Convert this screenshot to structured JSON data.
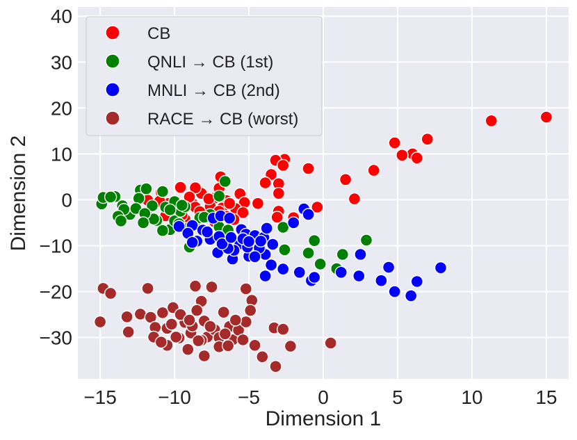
{
  "chart_data": {
    "type": "scatter",
    "xlabel": "Dimension 1",
    "ylabel": "Dimension 2",
    "xlim": [
      -16.5,
      16.5
    ],
    "ylim": [
      -39,
      42
    ],
    "xticks": [
      -15,
      -10,
      -5,
      0,
      5,
      10,
      15
    ],
    "yticks": [
      -30,
      -20,
      -10,
      0,
      10,
      20,
      30,
      40
    ],
    "grid": true,
    "legend_position": "top-left",
    "series": [
      {
        "name": "CB",
        "color": "#ff0000",
        "points": [
          [
            15.0,
            18.0
          ],
          [
            11.3,
            17.2
          ],
          [
            7.0,
            13.2
          ],
          [
            4.8,
            12.4
          ],
          [
            6.0,
            10.0
          ],
          [
            5.3,
            9.7
          ],
          [
            6.3,
            9.1
          ],
          [
            3.4,
            6.4
          ],
          [
            2.1,
            0.2
          ],
          [
            1.5,
            4.4
          ],
          [
            -1.0,
            6.8
          ],
          [
            -2.6,
            8.8
          ],
          [
            -3.2,
            8.6
          ],
          [
            -2.7,
            7.5
          ],
          [
            -3.5,
            5.5
          ],
          [
            -3.0,
            3.5
          ],
          [
            -3.9,
            3.7
          ],
          [
            -3.0,
            1.4
          ],
          [
            -4.4,
            -0.8
          ],
          [
            -3.0,
            -2.5
          ],
          [
            -2.0,
            -3.9
          ],
          [
            -0.4,
            -1.6
          ],
          [
            -3.1,
            -3.8
          ],
          [
            -6.9,
            5.0
          ],
          [
            -7.0,
            2.5
          ],
          [
            -5.6,
            1.3
          ],
          [
            -5.3,
            -0.6
          ],
          [
            -5.9,
            -1.9
          ],
          [
            -5.4,
            -2.8
          ],
          [
            -6.0,
            -4.3
          ],
          [
            -6.5,
            -0.2
          ],
          [
            -7.3,
            0.4
          ],
          [
            -8.2,
            1.4
          ],
          [
            -8.6,
            2.6
          ],
          [
            -9.6,
            2.7
          ],
          [
            -10.9,
            1.6
          ],
          [
            -11.8,
            -0.1
          ],
          [
            -10.4,
            -0.8
          ],
          [
            -9.8,
            -2.0
          ],
          [
            -10.6,
            -3.5
          ],
          [
            -8.1,
            -3.4
          ],
          [
            -7.3,
            -4.8
          ],
          [
            -6.8,
            -1.8
          ],
          [
            -8.8,
            -0.8
          ],
          [
            -9.3,
            -4.2
          ],
          [
            -11.0,
            -0.3
          ],
          [
            -8.6,
            -1.6
          ],
          [
            -9.0,
            0.6
          ],
          [
            -7.6,
            -1.4
          ],
          [
            -6.3,
            -0.8
          ],
          [
            -7.0,
            -2.5
          ],
          [
            -6.5,
            -3.6
          ],
          [
            -10.0,
            -0.9
          ],
          [
            -9.5,
            -3.3
          ],
          [
            -8.3,
            -2.6
          ],
          [
            -7.7,
            0.2
          ]
        ]
      },
      {
        "name": "QNLI → CB (1st)",
        "color": "#008000",
        "points": [
          [
            -14.9,
            -0.9
          ],
          [
            -14.8,
            0.5
          ],
          [
            -14.0,
            0.7
          ],
          [
            -13.5,
            -1.3
          ],
          [
            -13.0,
            -3.2
          ],
          [
            -12.3,
            2.1
          ],
          [
            -11.9,
            2.4
          ],
          [
            -12.4,
            0.3
          ],
          [
            -11.5,
            -1.3
          ],
          [
            -10.8,
            1.8
          ],
          [
            -10.6,
            -1.6
          ],
          [
            -11.2,
            -4.5
          ],
          [
            -10.3,
            -6.5
          ],
          [
            -10.0,
            -4.6
          ],
          [
            -9.6,
            -2.5
          ],
          [
            -9.2,
            -6.2
          ],
          [
            -8.6,
            -5.4
          ],
          [
            -7.6,
            -3.2
          ],
          [
            -7.0,
            0.8
          ],
          [
            -6.6,
            4.0
          ],
          [
            -7.0,
            -5.9
          ],
          [
            -6.4,
            -6.6
          ],
          [
            -11.8,
            -3.6
          ],
          [
            -12.6,
            -1.9
          ],
          [
            -13.4,
            -2.1
          ],
          [
            -14.3,
            0.6
          ],
          [
            -10.0,
            -0.4
          ],
          [
            -11.4,
            -4.2
          ],
          [
            -12.0,
            -3.0
          ],
          [
            -9.3,
            -1.5
          ],
          [
            -8.3,
            -3.9
          ],
          [
            -13.8,
            -3.6
          ],
          [
            -13.6,
            -4.6
          ],
          [
            -12.1,
            -5.0
          ],
          [
            -10.8,
            -6.7
          ],
          [
            -9.7,
            -5.2
          ],
          [
            -2.7,
            -6.0
          ],
          [
            -2.6,
            -10.9
          ],
          [
            -0.6,
            -8.9
          ],
          [
            -0.2,
            -14.0
          ],
          [
            -1.0,
            -11.6
          ],
          [
            0.9,
            -15.0
          ],
          [
            1.3,
            -11.9
          ],
          [
            2.9,
            -8.8
          ],
          [
            -9.5,
            -1.2
          ],
          [
            -10.3,
            -2.2
          ],
          [
            -8.0,
            -3.8
          ],
          [
            -9.0,
            -10.3
          ]
        ]
      },
      {
        "name": "MNLI → CB (2nd)",
        "color": "#0000ff",
        "points": [
          [
            -9.7,
            -5.8
          ],
          [
            -8.8,
            -5.6
          ],
          [
            -8.1,
            -6.6
          ],
          [
            -7.4,
            -4.0
          ],
          [
            -6.9,
            -3.5
          ],
          [
            -6.3,
            -4.0
          ],
          [
            -5.5,
            -6.5
          ],
          [
            -5.2,
            -7.5
          ],
          [
            -4.6,
            -7.8
          ],
          [
            -4.0,
            -8.2
          ],
          [
            -3.8,
            -6.2
          ],
          [
            -3.4,
            -9.7
          ],
          [
            -3.9,
            -11.9
          ],
          [
            -5.0,
            -12.3
          ],
          [
            -6.1,
            -12.9
          ],
          [
            -6.7,
            -9.3
          ],
          [
            -7.6,
            -8.6
          ],
          [
            -8.5,
            -9.0
          ],
          [
            -9.1,
            -7.3
          ],
          [
            -8.8,
            -9.3
          ],
          [
            -7.0,
            -8.0
          ],
          [
            -5.6,
            -9.6
          ],
          [
            -4.3,
            -10.5
          ],
          [
            -3.5,
            -14.2
          ],
          [
            -3.9,
            -16.6
          ],
          [
            -2.7,
            -15.1
          ],
          [
            -1.6,
            -15.8
          ],
          [
            -0.8,
            -17.6
          ],
          [
            -0.6,
            -16.9
          ],
          [
            -1.3,
            -2.0
          ],
          [
            -1.0,
            -3.2
          ],
          [
            -2.0,
            -5.0
          ],
          [
            1.2,
            -15.8
          ],
          [
            2.4,
            -16.6
          ],
          [
            2.5,
            -11.9
          ],
          [
            3.9,
            -17.6
          ],
          [
            4.4,
            -14.7
          ],
          [
            4.8,
            -20.0
          ],
          [
            5.9,
            -20.9
          ],
          [
            6.3,
            -17.8
          ],
          [
            7.9,
            -14.8
          ],
          [
            -7.1,
            -11.5
          ],
          [
            -6.0,
            -11.0
          ],
          [
            -5.1,
            -10.3
          ],
          [
            -4.6,
            -12.4
          ],
          [
            -6.4,
            -10.6
          ],
          [
            -5.4,
            -8.5
          ],
          [
            -4.2,
            -9.0
          ],
          [
            -7.8,
            -7.0
          ],
          [
            -6.8,
            -9.6
          ],
          [
            -6.2,
            -8.2
          ],
          [
            -5.0,
            -9.1
          ]
        ]
      },
      {
        "name": "RACE → CB (worst)",
        "color": "#a52a2a",
        "points": [
          [
            -15.0,
            -26.6
          ],
          [
            -14.8,
            -19.3
          ],
          [
            -14.3,
            -20.4
          ],
          [
            -13.2,
            -25.5
          ],
          [
            -13.1,
            -28.8
          ],
          [
            -12.3,
            -24.9
          ],
          [
            -11.8,
            -19.3
          ],
          [
            -11.6,
            -25.6
          ],
          [
            -11.3,
            -27.8
          ],
          [
            -11.4,
            -29.9
          ],
          [
            -10.8,
            -24.6
          ],
          [
            -10.5,
            -28.0
          ],
          [
            -10.5,
            -31.7
          ],
          [
            -10.1,
            -23.5
          ],
          [
            -9.7,
            -30.1
          ],
          [
            -9.3,
            -26.7
          ],
          [
            -9.1,
            -32.6
          ],
          [
            -8.9,
            -29.0
          ],
          [
            -8.6,
            -18.8
          ],
          [
            -8.2,
            -22.1
          ],
          [
            -8.5,
            -24.1
          ],
          [
            -8.0,
            -26.4
          ],
          [
            -7.8,
            -29.9
          ],
          [
            -7.5,
            -19.0
          ],
          [
            -7.3,
            -28.3
          ],
          [
            -7.0,
            -30.0
          ],
          [
            -6.7,
            -24.5
          ],
          [
            -6.3,
            -27.6
          ],
          [
            -6.1,
            -30.5
          ],
          [
            -5.7,
            -28.4
          ],
          [
            -5.2,
            -26.6
          ],
          [
            -5.2,
            -19.4
          ],
          [
            -4.8,
            -21.9
          ],
          [
            -4.9,
            -24.1
          ],
          [
            -4.6,
            -31.7
          ],
          [
            -4.1,
            -34.2
          ],
          [
            -3.3,
            -27.9
          ],
          [
            -3.2,
            -36.3
          ],
          [
            -2.7,
            -28.2
          ],
          [
            -2.2,
            -31.9
          ],
          [
            0.5,
            -31.2
          ],
          [
            -9.9,
            -29.9
          ],
          [
            -8.2,
            -30.6
          ],
          [
            -7.0,
            -32.0
          ],
          [
            -8.8,
            -27.5
          ],
          [
            -9.6,
            -25.0
          ],
          [
            -10.9,
            -31.0
          ],
          [
            -8.0,
            -34.0
          ],
          [
            -6.4,
            -31.8
          ],
          [
            -5.4,
            -30.5
          ],
          [
            -5.9,
            -26.2
          ],
          [
            -7.6,
            -27.6
          ],
          [
            -9.0,
            -26.2
          ],
          [
            -10.2,
            -27.1
          ],
          [
            -6.6,
            -29.2
          ],
          [
            -8.4,
            -30.7
          ]
        ]
      }
    ],
    "legend": {
      "entries": [
        "CB",
        "QNLI → CB (1st)",
        "MNLI → CB (2nd)",
        "RACE → CB (worst)"
      ]
    }
  }
}
